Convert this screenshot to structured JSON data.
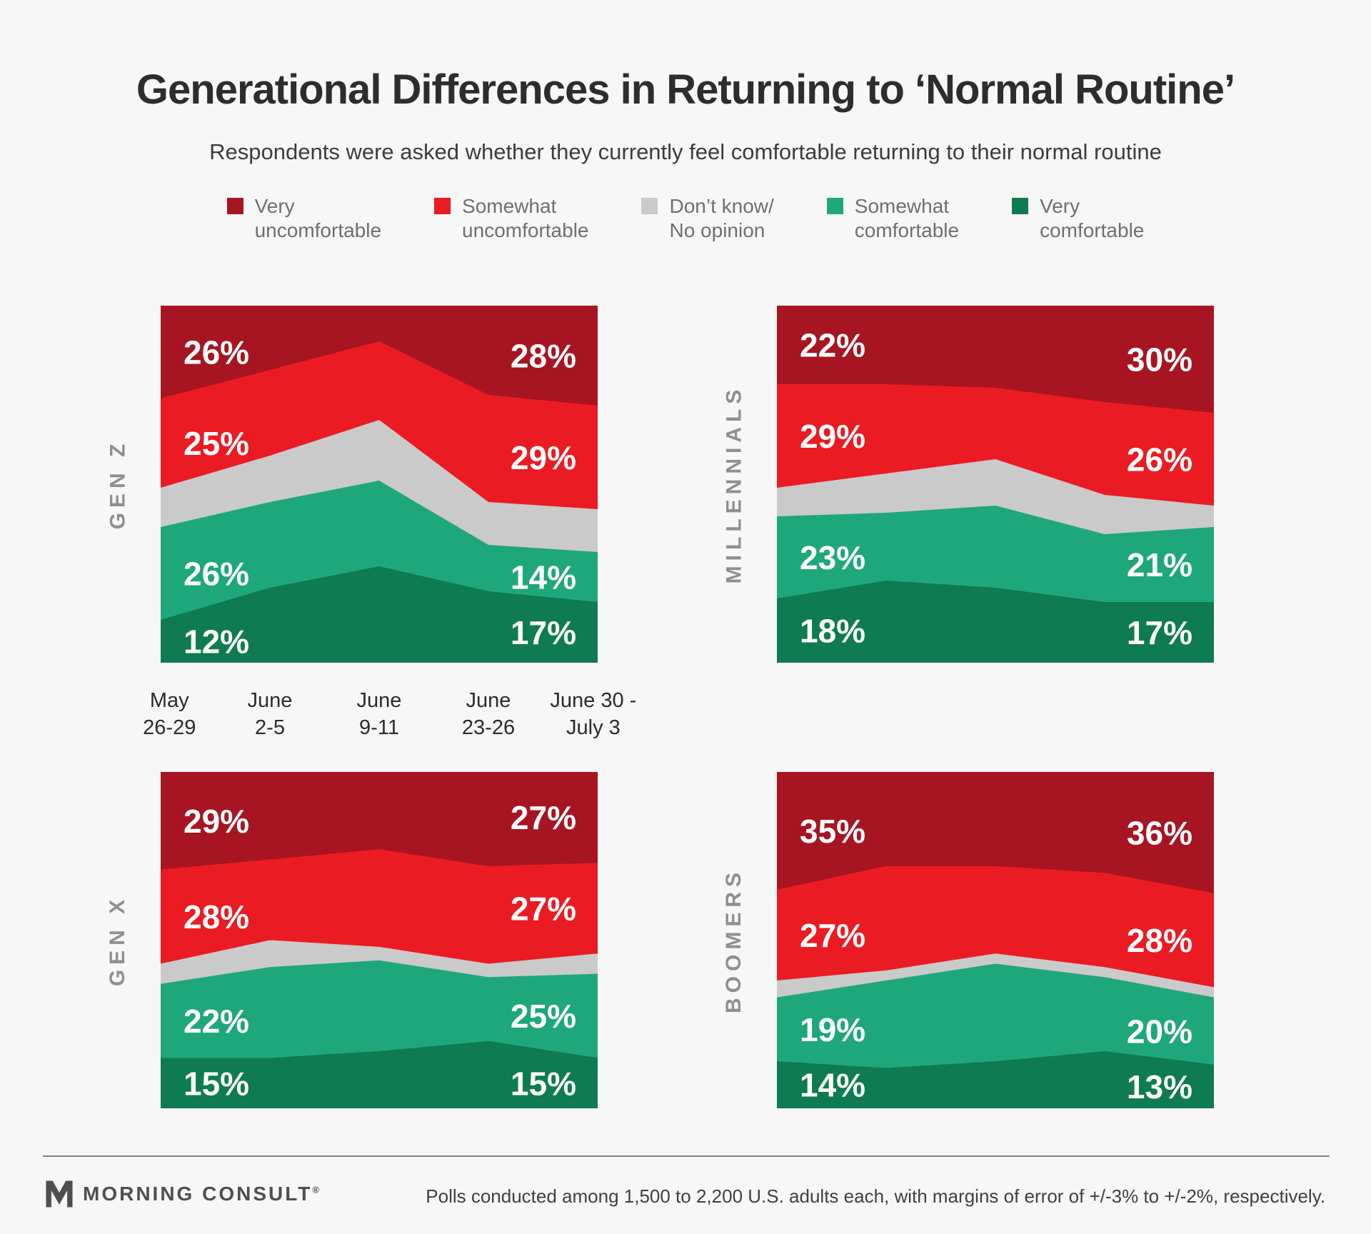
{
  "page": {
    "background": "#F7F7F7"
  },
  "header": {
    "title": "Generational Differences in Returning to ‘Normal Routine’",
    "subtitle": "Respondents were asked whether they currently feel comfortable returning to their normal routine"
  },
  "colors": {
    "very_uncomfortable": "#A71522",
    "somewhat_uncomfortable": "#EB1B23",
    "dont_know": "#CACACA",
    "somewhat_comfortable": "#1FA77C",
    "very_comfortable": "#0E7B52",
    "label_text": "#FFFFFF"
  },
  "legend": {
    "items": [
      {
        "label_line1": "Very",
        "label_line2": "uncomfortable",
        "color": "#A71522"
      },
      {
        "label_line1": "Somewhat",
        "label_line2": "uncomfortable",
        "color": "#EB1B23"
      },
      {
        "label_line1": "Don’t know/",
        "label_line2": "No opinion",
        "color": "#CACACA"
      },
      {
        "label_line1": "Somewhat",
        "label_line2": "comfortable",
        "color": "#1FA77C"
      },
      {
        "label_line1": "Very",
        "label_line2": "comfortable",
        "color": "#0E7B52"
      }
    ]
  },
  "x_axis": {
    "labels": [
      {
        "line1": "May",
        "line2": "26-29"
      },
      {
        "line1": "June",
        "line2": "2-5"
      },
      {
        "line1": "June",
        "line2": "9-11"
      },
      {
        "line1": "June",
        "line2": "23-26"
      },
      {
        "line1": "June 30 -",
        "line2": "July 3"
      }
    ]
  },
  "chart_data": [
    {
      "type": "area",
      "stacked_percent": true,
      "group_label": "GEN Z",
      "x": [
        "May 26-29",
        "June 2-5",
        "June 9-11",
        "June 23-26",
        "June 30 - July 3"
      ],
      "ylim": [
        0,
        100
      ],
      "grid": false,
      "legend_position": "top",
      "series": [
        {
          "name": "Very uncomfortable",
          "color": "#A71522",
          "values": [
            26,
            18,
            10,
            25,
            28
          ]
        },
        {
          "name": "Somewhat uncomfortable",
          "color": "#EB1B23",
          "values": [
            25,
            24,
            22,
            30,
            29
          ]
        },
        {
          "name": "Don't know/No opinion",
          "color": "#CACACA",
          "values": [
            11,
            13,
            17,
            12,
            12
          ]
        },
        {
          "name": "Somewhat comfortable",
          "color": "#1FA77C",
          "values": [
            26,
            24,
            24,
            13,
            14
          ]
        },
        {
          "name": "Very comfortable",
          "color": "#0E7B52",
          "values": [
            12,
            21,
            27,
            20,
            17
          ]
        }
      ],
      "label_series_indexes": [
        0,
        1,
        3,
        4
      ],
      "labels_left": [
        "26%",
        "25%",
        "26%",
        "12%"
      ],
      "labels_right": [
        "28%",
        "29%",
        "14%",
        "17%"
      ]
    },
    {
      "type": "area",
      "stacked_percent": true,
      "group_label": "MILLENNIALS",
      "x": [
        "May 26-29",
        "June 2-5",
        "June 9-11",
        "June 23-26",
        "June 30 - July 3"
      ],
      "ylim": [
        0,
        100
      ],
      "grid": false,
      "legend_position": "top",
      "series": [
        {
          "name": "Very uncomfortable",
          "color": "#A71522",
          "values": [
            22,
            22,
            23,
            27,
            30
          ]
        },
        {
          "name": "Somewhat uncomfortable",
          "color": "#EB1B23",
          "values": [
            29,
            25,
            20,
            26,
            26
          ]
        },
        {
          "name": "Don't know/No opinion",
          "color": "#CACACA",
          "values": [
            8,
            11,
            13,
            11,
            6
          ]
        },
        {
          "name": "Somewhat comfortable",
          "color": "#1FA77C",
          "values": [
            23,
            19,
            23,
            19,
            21
          ]
        },
        {
          "name": "Very comfortable",
          "color": "#0E7B52",
          "values": [
            18,
            23,
            21,
            17,
            17
          ]
        }
      ],
      "label_series_indexes": [
        0,
        1,
        3,
        4
      ],
      "labels_left": [
        "22%",
        "29%",
        "23%",
        "18%"
      ],
      "labels_right": [
        "30%",
        "26%",
        "21%",
        "17%"
      ]
    },
    {
      "type": "area",
      "stacked_percent": true,
      "group_label": "GEN X",
      "x": [
        "May 26-29",
        "June 2-5",
        "June 9-11",
        "June 23-26",
        "June 30 - July 3"
      ],
      "ylim": [
        0,
        100
      ],
      "grid": false,
      "legend_position": "top",
      "series": [
        {
          "name": "Very uncomfortable",
          "color": "#A71522",
          "values": [
            29,
            26,
            23,
            28,
            27
          ]
        },
        {
          "name": "Somewhat uncomfortable",
          "color": "#EB1B23",
          "values": [
            28,
            24,
            29,
            29,
            27
          ]
        },
        {
          "name": "Don't know/No opinion",
          "color": "#CACACA",
          "values": [
            6,
            8,
            4,
            4,
            6
          ]
        },
        {
          "name": "Somewhat comfortable",
          "color": "#1FA77C",
          "values": [
            22,
            27,
            27,
            19,
            25
          ]
        },
        {
          "name": "Very comfortable",
          "color": "#0E7B52",
          "values": [
            15,
            15,
            17,
            20,
            15
          ]
        }
      ],
      "label_series_indexes": [
        0,
        1,
        3,
        4
      ],
      "labels_left": [
        "29%",
        "28%",
        "22%",
        "15%"
      ],
      "labels_right": [
        "27%",
        "27%",
        "25%",
        "15%"
      ]
    },
    {
      "type": "area",
      "stacked_percent": true,
      "group_label": "BOOMERS",
      "x": [
        "May 26-29",
        "June 2-5",
        "June 9-11",
        "June 23-26",
        "June 30 - July 3"
      ],
      "ylim": [
        0,
        100
      ],
      "grid": false,
      "legend_position": "top",
      "series": [
        {
          "name": "Very uncomfortable",
          "color": "#A71522",
          "values": [
            35,
            28,
            28,
            30,
            36
          ]
        },
        {
          "name": "Somewhat uncomfortable",
          "color": "#EB1B23",
          "values": [
            27,
            31,
            26,
            28,
            28
          ]
        },
        {
          "name": "Don't know/No opinion",
          "color": "#CACACA",
          "values": [
            5,
            3,
            3,
            3,
            3
          ]
        },
        {
          "name": "Somewhat comfortable",
          "color": "#1FA77C",
          "values": [
            19,
            26,
            29,
            22,
            20
          ]
        },
        {
          "name": "Very comfortable",
          "color": "#0E7B52",
          "values": [
            14,
            12,
            14,
            17,
            13
          ]
        }
      ],
      "label_series_indexes": [
        0,
        1,
        3,
        4
      ],
      "labels_left": [
        "35%",
        "27%",
        "19%",
        "14%"
      ],
      "labels_right": [
        "36%",
        "28%",
        "20%",
        "13%"
      ]
    }
  ],
  "footer": {
    "brand": "MORNING CONSULT",
    "registered": "®",
    "methodology": "Polls conducted among 1,500 to 2,200 U.S. adults each, with margins of error of +/-3% to +/-2%, respectively."
  }
}
